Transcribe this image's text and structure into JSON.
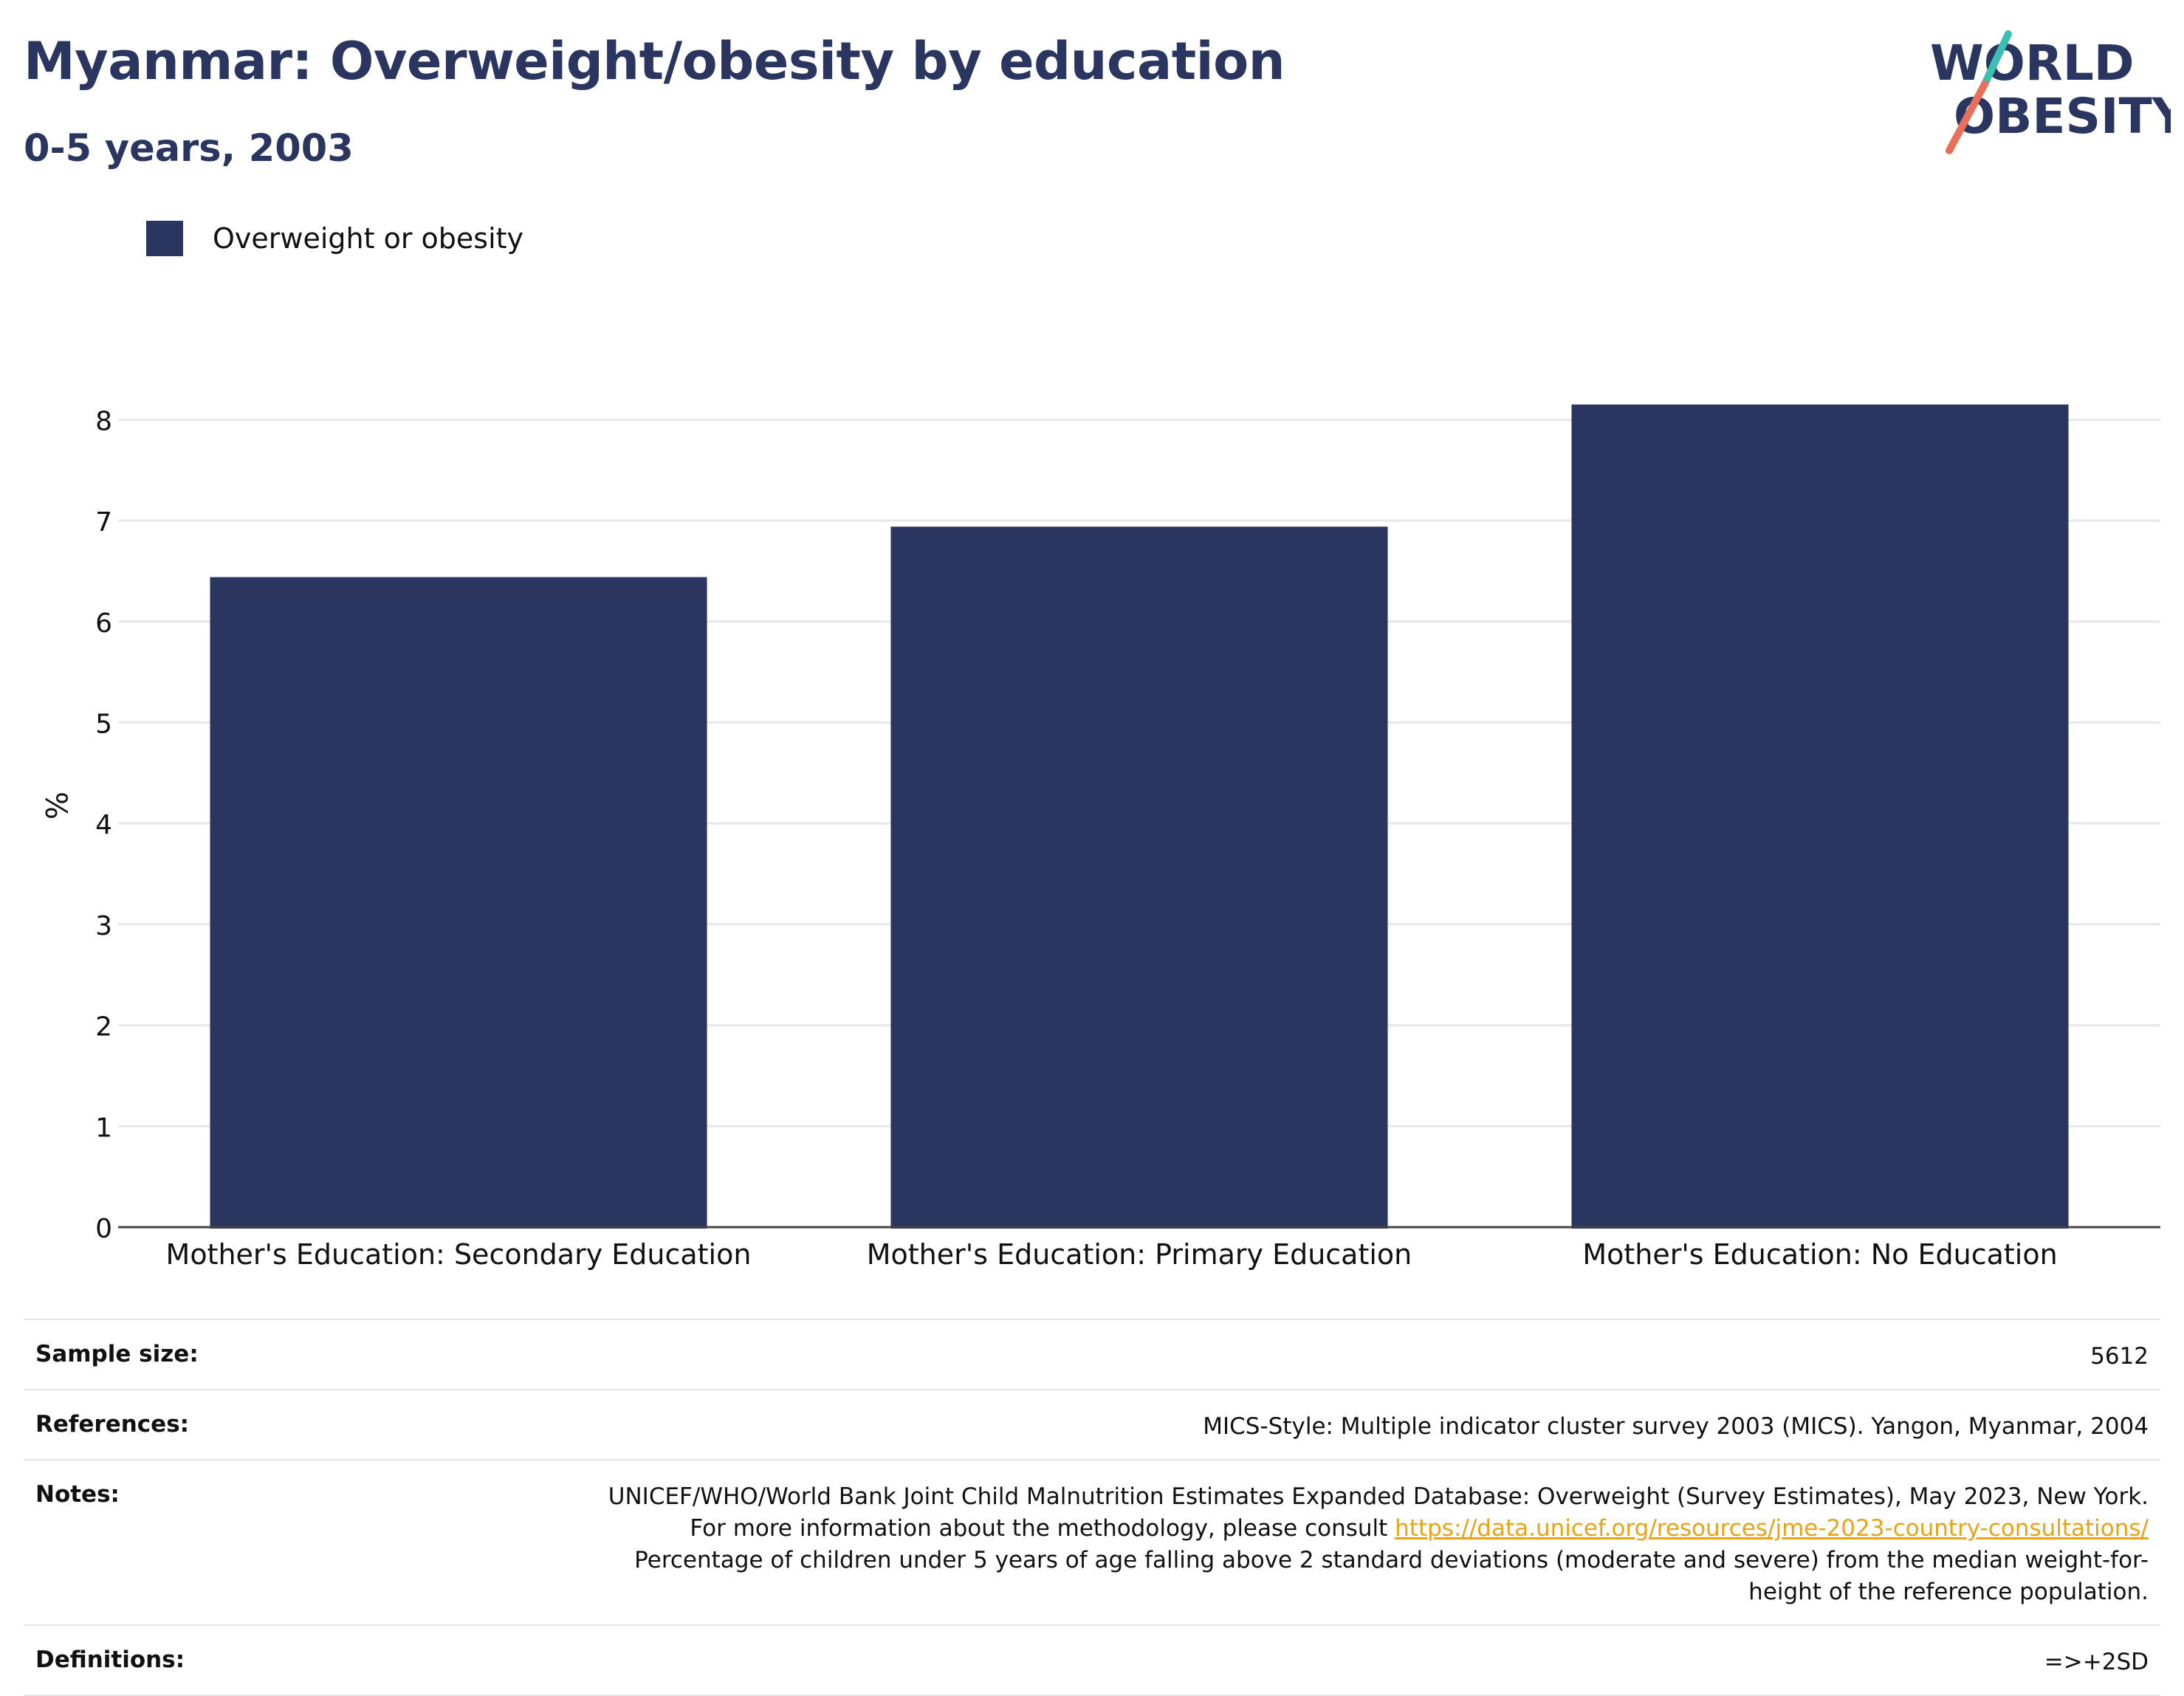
{
  "header": {
    "title": "Myanmar: Overweight/obesity by education",
    "subtitle": "0-5 years, 2003"
  },
  "logo": {
    "line1": "WORLD",
    "line2": "OBESITY",
    "colors": {
      "text": "#2a365f",
      "slash_top": "#3bbfb2",
      "slash_bottom": "#e8705a"
    }
  },
  "colors": {
    "bar": "#2a365f",
    "grid": "#e8e8e8",
    "axis": "#444444",
    "link": "#e8a317"
  },
  "chart_data": {
    "type": "bar",
    "categories": [
      "Mother's Education: Secondary Education",
      "Mother's Education: Primary Education",
      "Mother's Education: No Education"
    ],
    "series": [
      {
        "name": "Overweight or obesity",
        "values": [
          6.44,
          6.94,
          8.15
        ]
      }
    ],
    "ylabel": "%",
    "xlabel": "",
    "ylim": [
      0,
      8.5
    ],
    "yticks": [
      0,
      1,
      2,
      3,
      4,
      5,
      6,
      7,
      8
    ],
    "grid": true,
    "legend_position": "top-left"
  },
  "info": {
    "sample_size": {
      "label": "Sample size:",
      "value": "5612"
    },
    "references": {
      "label": "References:",
      "value": "MICS-Style: Multiple indicator cluster survey 2003 (MICS). Yangon, Myanmar, 2004"
    },
    "notes": {
      "label": "Notes:",
      "text_before_link": "UNICEF/WHO/World Bank Joint Child Malnutrition Estimates Expanded Database: Overweight (Survey Estimates), May 2023, New York. For more information about the methodology, please consult ",
      "link": "https://data.unicef.org/resources/jme-2023-country-consultations/",
      "text_after_link": " Percentage of children under 5 years of age falling above 2 standard deviations (moderate and severe) from the median weight-for-height of the reference population."
    },
    "definitions": {
      "label": "Definitions:",
      "value": "=>+2SD"
    }
  }
}
